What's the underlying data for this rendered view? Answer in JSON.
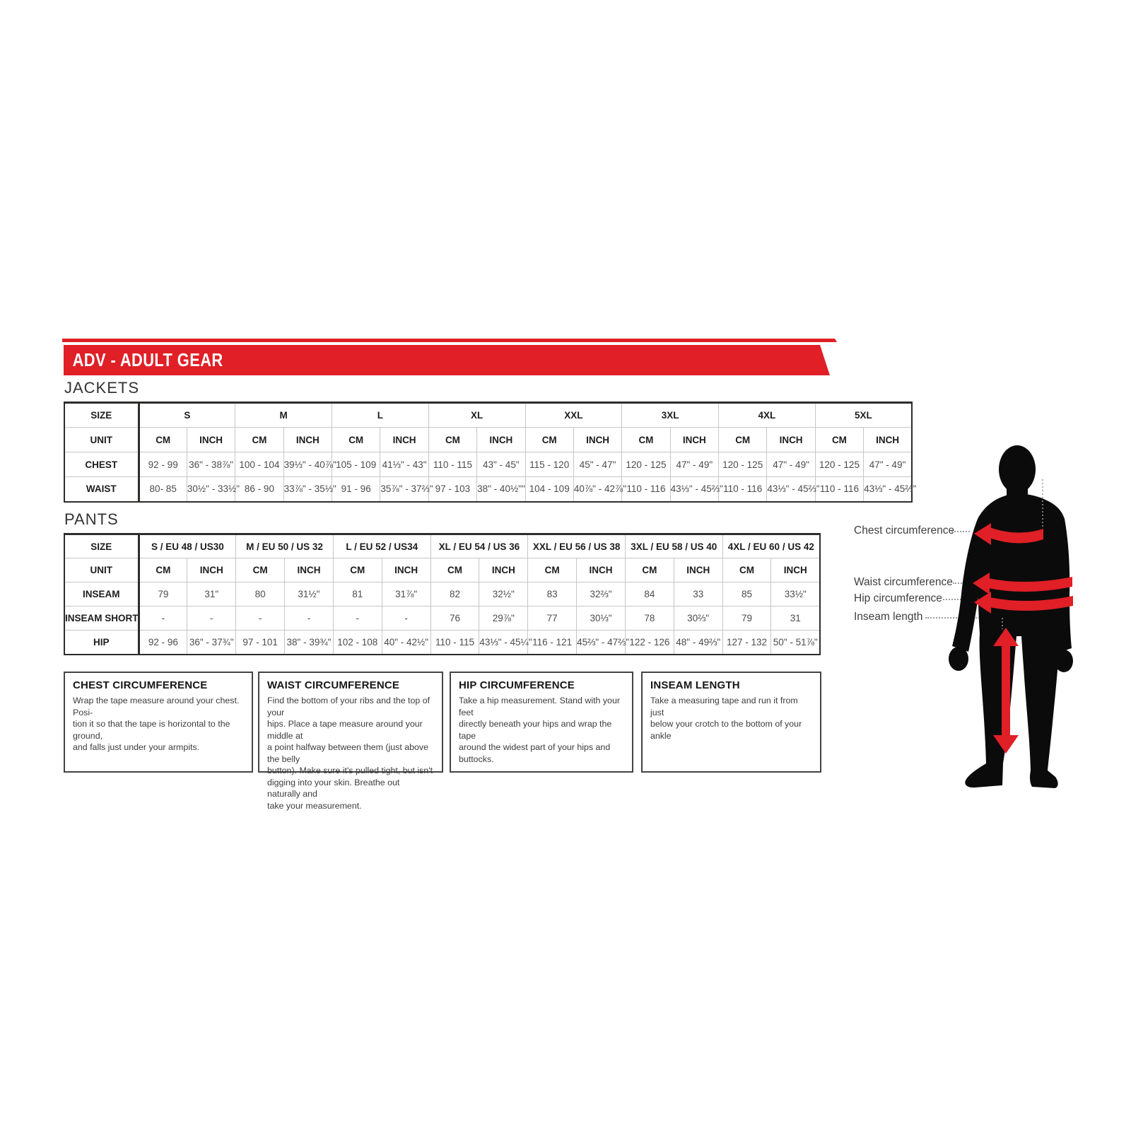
{
  "banner": {
    "title": "ADV - ADULT GEAR"
  },
  "colors": {
    "red": "#e01f26",
    "black": "#0b0b0b",
    "dotted": "#9c9c9c"
  },
  "jackets": {
    "heading": "JACKETS",
    "size_label": "SIZE",
    "unit_label": "UNIT",
    "units": [
      "CM",
      "INCH"
    ],
    "sizes": [
      "S",
      "M",
      "L",
      "XL",
      "XXL",
      "3XL",
      "4XL",
      "5XL"
    ],
    "rows": [
      {
        "label": "CHEST",
        "values": [
          "92 - 99",
          "36\" - 38⅞\"",
          "100 - 104",
          "39⅓\" - 40⅞\"",
          "105 - 109",
          "41⅓\" - 43\"",
          "110 - 115",
          "43\" - 45\"",
          "115 - 120",
          "45\" - 47\"",
          "120 - 125",
          "47\" - 49\"",
          "120 - 125",
          "47\" - 49\"",
          "120 - 125",
          "47\" - 49\""
        ]
      },
      {
        "label": "WAIST",
        "values": [
          "80- 85",
          "30½\" - 33½\"",
          "86 - 90",
          "33⅞\" - 35⅓\"",
          "91 - 96",
          "35⅞\" - 37⅔\"",
          "97 - 103",
          "38\" - 40½\"\"",
          "104 - 109",
          "40⅞\" - 42⅞\"",
          "110 - 116",
          "43⅓\" - 45⅔\"",
          "110 - 116",
          "43⅓\" - 45⅔\"",
          "110 - 116",
          "43⅓\" - 45⅔\""
        ]
      }
    ]
  },
  "pants": {
    "heading": "PANTS",
    "size_label": "SIZE",
    "unit_label": "UNIT",
    "units": [
      "CM",
      "INCH"
    ],
    "sizes": [
      "S / EU 48 / US30",
      "M / EU 50 / US 32",
      "L / EU 52 / US34",
      "XL / EU 54 / US 36",
      "XXL / EU 56 / US 38",
      "3XL / EU 58 / US 40",
      "4XL / EU 60 / US 42"
    ],
    "rows": [
      {
        "label": "INSEAM",
        "values": [
          "79",
          "31\"",
          "80",
          "31½\"",
          "81",
          "31⅞\"",
          "82",
          "32½\"",
          "83",
          "32⅔\"",
          "84",
          "33",
          "85",
          "33½\""
        ]
      },
      {
        "label": "INSEAM SHORT",
        "values": [
          "-",
          "-",
          "-",
          "-",
          "-",
          "-",
          "76",
          "29⅞\"",
          "77",
          "30⅓\"",
          "78",
          "30⅔\"",
          "79",
          "31"
        ]
      },
      {
        "label": "HIP",
        "values": [
          "92 - 96",
          "36\" - 37¾\"",
          "97 - 101",
          "38\" - 39¾\"",
          "102 - 108",
          "40\" - 42½\"",
          "110 - 115",
          "43⅓\" - 45¼\"",
          "116 - 121",
          "45⅔\" - 47⅔\"",
          "122 - 126",
          "48\" - 49⅔\"",
          "127 - 132",
          "50\" - 51⅞\""
        ]
      }
    ]
  },
  "instructions": [
    {
      "title": "CHEST CIRCUMFERENCE",
      "body": "Wrap the tape measure around your chest. Posi-\ntion it so that the tape is horizontal to the ground,\nand falls just under your armpits."
    },
    {
      "title": "WAIST CIRCUMFERENCE",
      "body": "Find the bottom of your ribs and the top of your\nhips. Place a tape measure around your middle at\na point halfway between them (just above the belly\nbutton). Make sure it's pulled tight, but isn't\ndigging into your skin. Breathe out naturally and\ntake your measurement."
    },
    {
      "title": "HIP CIRCUMFERENCE",
      "body": "Take a hip measurement. Stand with your feet\ndirectly beneath your hips and wrap the tape\naround the widest part of your hips and buttocks."
    },
    {
      "title": "INSEAM LENGTH",
      "body": "Take a measuring tape and run it from just\nbelow your crotch to the bottom of your ankle"
    }
  ],
  "figure": {
    "labels": {
      "chest": "Chest circumference",
      "waist": "Waist circumference",
      "hip": "Hip circumference",
      "inseam": "Inseam length"
    }
  }
}
